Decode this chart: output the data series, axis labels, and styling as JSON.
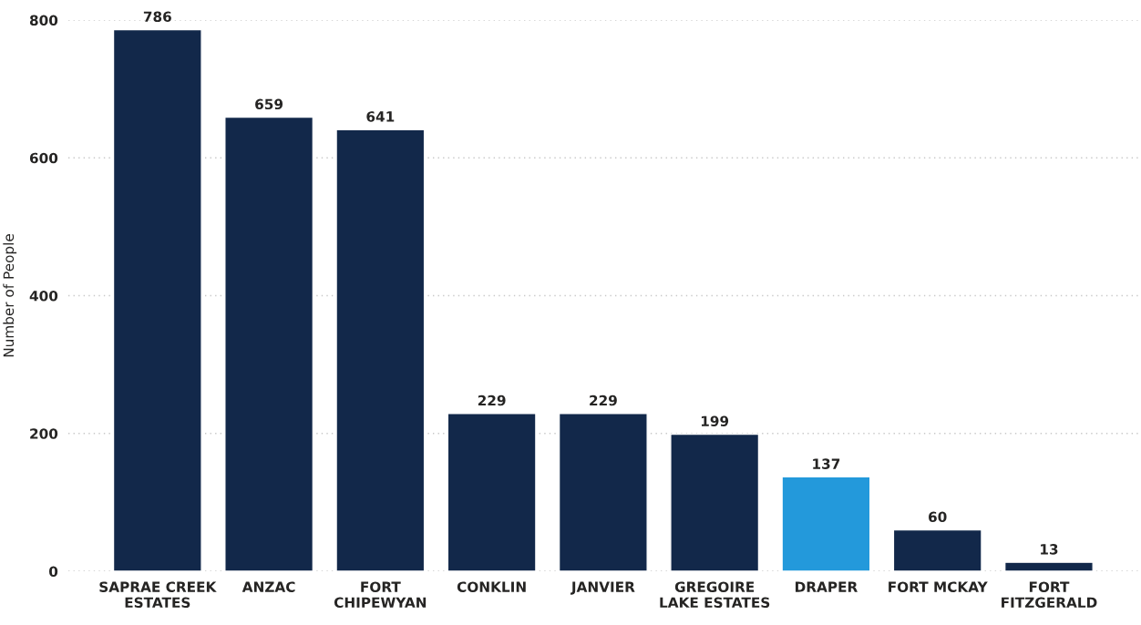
{
  "chart_data": {
    "type": "bar",
    "ylabel": "Number of People",
    "categories": [
      "SAPRAE CREEK\nESTATES",
      "ANZAC",
      "FORT\nCHIPEWYAN",
      "CONKLIN",
      "JANVIER",
      "GREGOIRE\nLAKE ESTATES",
      "DRAPER",
      "FORT MCKAY",
      "FORT\nFITZGERALD"
    ],
    "values": [
      786,
      659,
      641,
      229,
      229,
      199,
      137,
      60,
      13
    ],
    "colors": [
      "#12284a",
      "#12284a",
      "#12284a",
      "#12284a",
      "#12284a",
      "#12284a",
      "#2399db",
      "#12284a",
      "#12284a"
    ],
    "ylim": [
      0,
      800
    ],
    "yticks": [
      0,
      200,
      400,
      600,
      800
    ],
    "grid": "y",
    "data_labels": true
  }
}
